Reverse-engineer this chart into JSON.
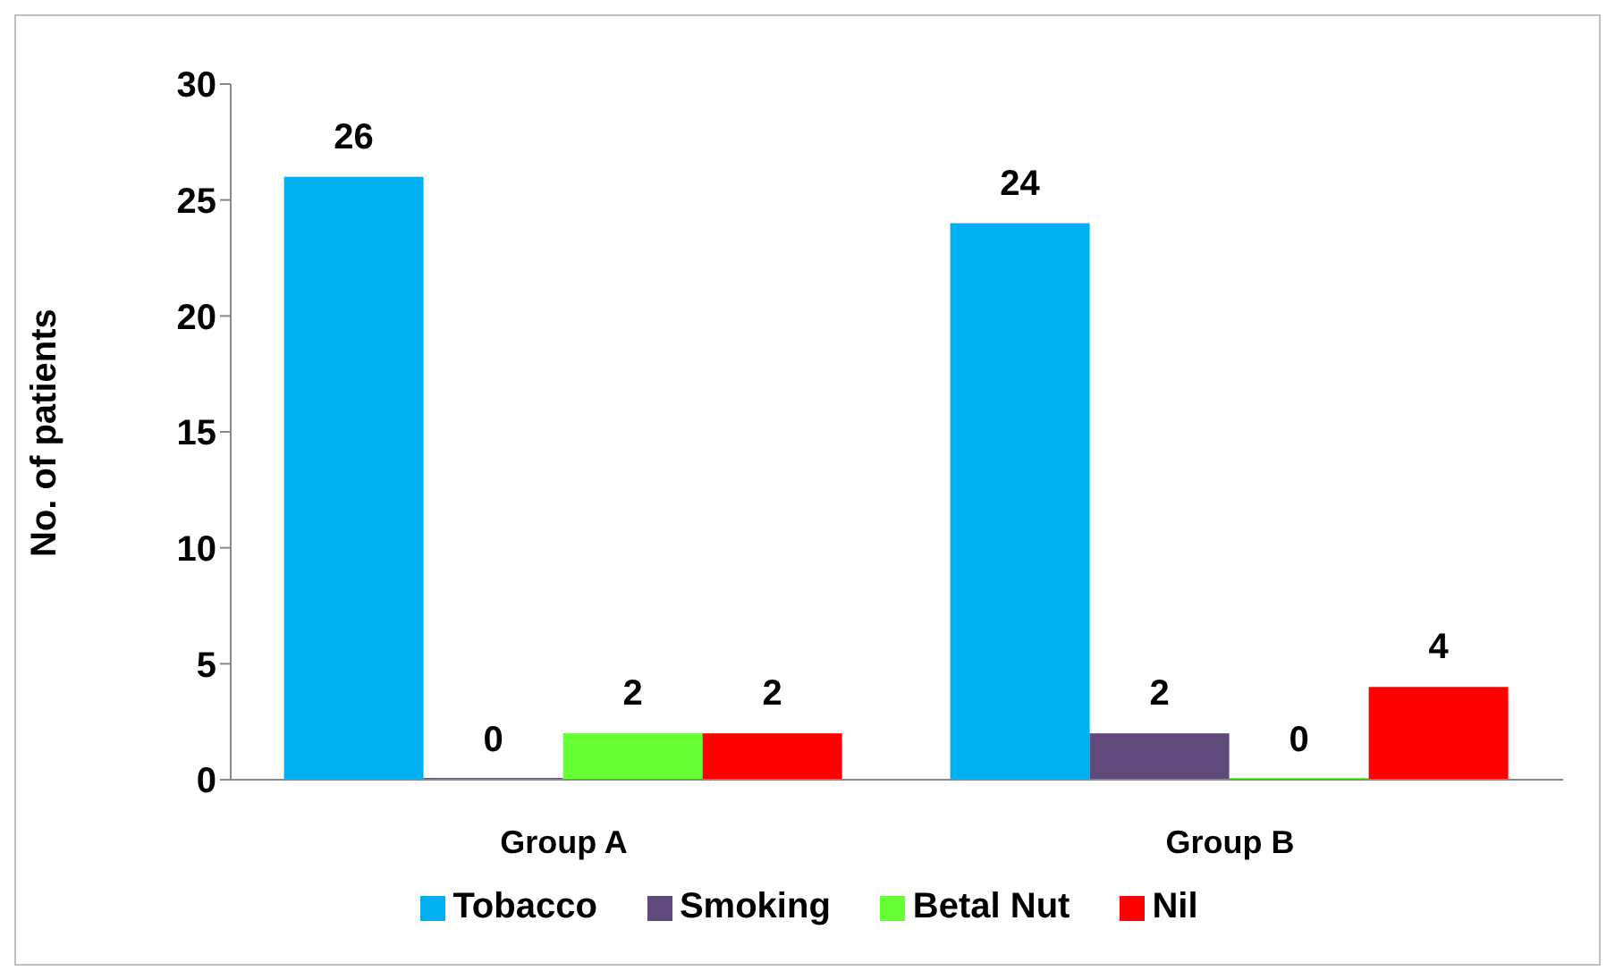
{
  "chart_data": {
    "type": "bar",
    "ylabel": "No. of patients",
    "categories": [
      "Group A",
      "Group B"
    ],
    "series": [
      {
        "name": "Tobacco",
        "color": "#00b0f0",
        "values": [
          26,
          24
        ]
      },
      {
        "name": "Smoking",
        "color": "#604a7b",
        "values": [
          0,
          2
        ]
      },
      {
        "name": "Betal Nut",
        "color": "#66ff33",
        "values": [
          2,
          0
        ]
      },
      {
        "name": "Nil",
        "color": "#ff0000",
        "values": [
          2,
          4
        ]
      }
    ],
    "ylim": [
      0,
      30
    ],
    "yticks": [
      0,
      5,
      10,
      15,
      20,
      25,
      30
    ],
    "grid": false,
    "legend": "bottom",
    "data_labels": true
  }
}
